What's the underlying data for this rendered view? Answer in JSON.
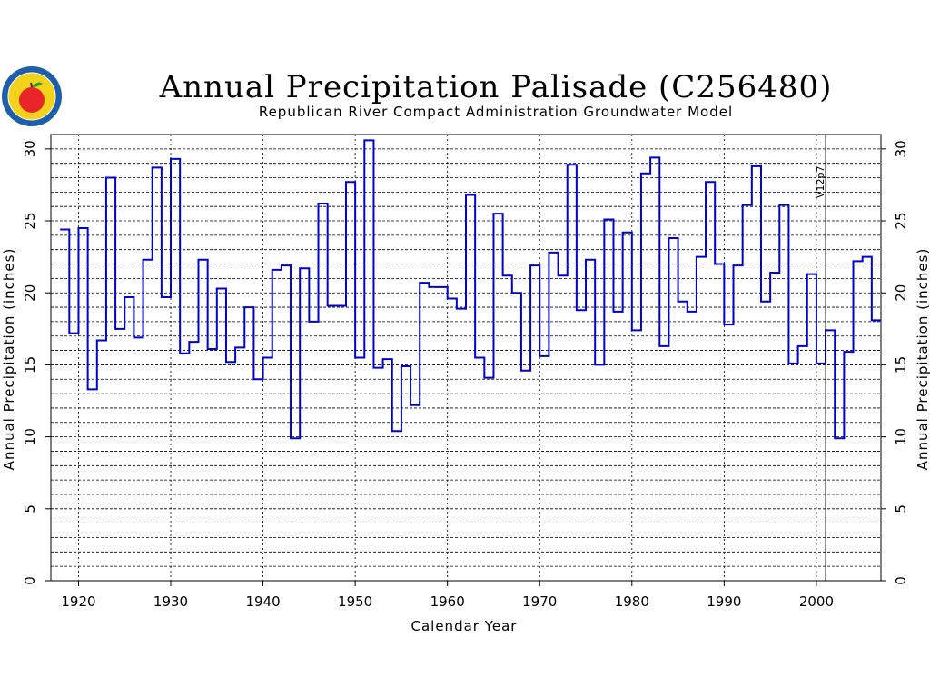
{
  "chart_data": {
    "type": "line",
    "title": "Annual Precipitation Palisade (C256480)",
    "subtitle": "Republican River Compact Administration Groundwater Model",
    "xlabel": "Calendar Year",
    "ylabel": "Annual Precipitation (inches)",
    "ylabel_right": "Annual Precipitation (inches)",
    "xlim": [
      1917,
      2007
    ],
    "ylim": [
      0,
      31
    ],
    "xticks": [
      1920,
      1930,
      1940,
      1950,
      1960,
      1970,
      1980,
      1990,
      2000
    ],
    "yticks": [
      0,
      5,
      10,
      15,
      20,
      25,
      30
    ],
    "grid": true,
    "annotation": {
      "text": "V12p7",
      "x": 2001
    },
    "series": [
      {
        "color": "#0000cc",
        "x": [
          1918,
          1919,
          1920,
          1921,
          1922,
          1923,
          1924,
          1925,
          1926,
          1927,
          1928,
          1929,
          1930,
          1931,
          1932,
          1933,
          1934,
          1935,
          1936,
          1937,
          1938,
          1939,
          1940,
          1941,
          1942,
          1943,
          1944,
          1945,
          1946,
          1947,
          1948,
          1949,
          1950,
          1951,
          1952,
          1953,
          1954,
          1955,
          1956,
          1957,
          1958,
          1959,
          1960,
          1961,
          1962,
          1963,
          1964,
          1965,
          1966,
          1967,
          1968,
          1969,
          1970,
          1971,
          1972,
          1973,
          1974,
          1975,
          1976,
          1977,
          1978,
          1979,
          1980,
          1981,
          1982,
          1983,
          1984,
          1985,
          1986,
          1987,
          1988,
          1989,
          1990,
          1991,
          1992,
          1993,
          1994,
          1995,
          1996,
          1997,
          1998,
          1999,
          2000,
          2001,
          2002,
          2003,
          2004,
          2005,
          2006
        ],
        "values": [
          24.4,
          17.2,
          24.5,
          13.3,
          16.7,
          28.0,
          17.5,
          19.7,
          16.9,
          22.3,
          28.7,
          19.7,
          29.3,
          15.8,
          16.6,
          22.3,
          16.1,
          20.3,
          15.2,
          16.2,
          19.0,
          14.0,
          15.5,
          21.6,
          21.9,
          9.9,
          21.7,
          18.0,
          26.2,
          19.1,
          19.1,
          27.7,
          15.5,
          30.6,
          14.8,
          15.4,
          10.4,
          14.9,
          12.2,
          20.7,
          20.4,
          20.4,
          19.6,
          18.9,
          26.8,
          15.5,
          14.1,
          25.5,
          21.2,
          20.0,
          14.6,
          21.9,
          15.6,
          22.8,
          21.2,
          28.9,
          18.8,
          22.3,
          15.0,
          25.1,
          18.7,
          24.2,
          17.4,
          28.3,
          29.4,
          16.3,
          23.8,
          19.4,
          18.7,
          22.5,
          27.7,
          22.0,
          17.8,
          21.9,
          26.1,
          28.8,
          19.4,
          21.4,
          26.1,
          15.1,
          16.3,
          21.3,
          15.1,
          17.4,
          9.9,
          15.9,
          22.2,
          22.5,
          18.1
        ]
      }
    ]
  },
  "logo": {
    "name": "Republican River Compact Administration seal",
    "colors": {
      "ring": "#1f5faa",
      "field": "#f2d21b",
      "apple": "#e8262a",
      "leaf": "#1e9e3a"
    }
  },
  "colors": {
    "series": "#0000cc",
    "axis": "#000000",
    "grid": "#000000"
  }
}
